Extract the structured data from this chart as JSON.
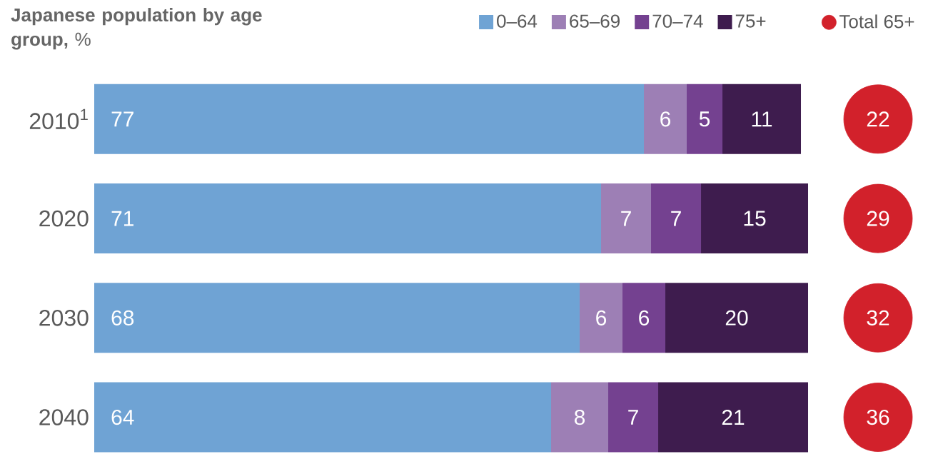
{
  "chart_data": [
    {
      "type": "bar",
      "orientation": "horizontal",
      "stacked": true,
      "title": "**Japanese population by age group,** %",
      "categories": [
        "2010$^{1}$",
        "2020",
        "2030",
        "2040"
      ],
      "series": [
        {
          "name": "0–64",
          "color": "#6fa3d4",
          "values": [
            77,
            71,
            68,
            64
          ]
        },
        {
          "name": "65–69",
          "color": "#9d7fb5",
          "values": [
            6,
            7,
            6,
            8
          ]
        },
        {
          "name": "70–74",
          "color": "#744190",
          "values": [
            5,
            7,
            6,
            7
          ]
        },
        {
          "name": "75+",
          "color": "#3e1c4e",
          "values": [
            11,
            15,
            20,
            21
          ]
        }
      ],
      "data_labels": true,
      "legend": "top right"
    },
    {
      "type": "other",
      "categories": [
        null,
        null,
        null,
        null
      ],
      "series": [
        {
          "name": "Total 65+",
          "color": "#d2212b",
          "values": [
            22,
            29,
            32,
            36
          ]
        }
      ],
      "data_labels": true,
      "legend": "top right"
    }
  ]
}
